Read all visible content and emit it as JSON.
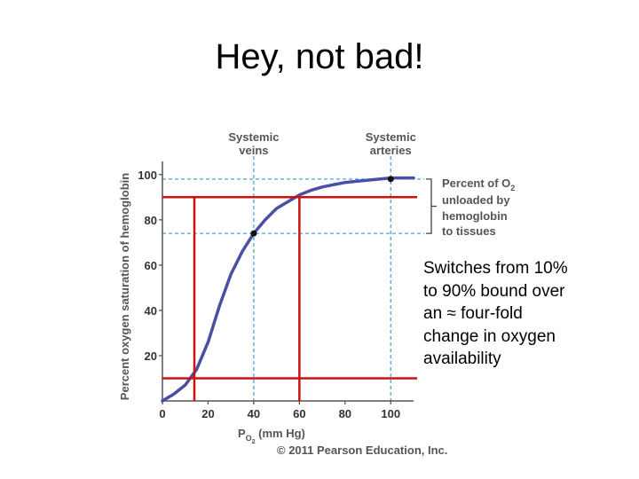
{
  "slide": {
    "title": "Hey, not bad!",
    "note_lines": [
      "Switches from 10%",
      "to 90% bound over",
      "an ≈ four-fold",
      "change in oxygen",
      "availability"
    ]
  },
  "chart_data": {
    "type": "line",
    "ylabel": "Percent oxygen saturation of hemoglobin",
    "xlabel_main": "P",
    "xlabel_sub": "O",
    "xlabel_subsub": "2",
    "xlabel_unit": "(mm Hg)",
    "xlim": [
      0,
      110
    ],
    "ylim": [
      0,
      105
    ],
    "x_ticks": [
      0,
      20,
      40,
      60,
      80,
      100
    ],
    "y_ticks": [
      20,
      40,
      60,
      80,
      100
    ],
    "series": [
      {
        "x": [
          0,
          5,
          10,
          15,
          20,
          25,
          30,
          35,
          40,
          45,
          50,
          55,
          60,
          65,
          70,
          75,
          80,
          85,
          90,
          95,
          100,
          105,
          110
        ],
        "y": [
          0,
          3,
          7,
          14,
          26,
          42,
          56,
          66,
          74,
          80,
          85,
          88,
          91,
          93,
          94.5,
          95.5,
          96.5,
          97,
          97.5,
          98,
          98.5,
          98.5,
          98.5
        ]
      }
    ],
    "points": [
      {
        "x": 40,
        "y": 74
      },
      {
        "x": 100,
        "y": 98
      }
    ],
    "top_labels": [
      {
        "x": 40,
        "lines": [
          "Systemic",
          "veins"
        ]
      },
      {
        "x": 100,
        "lines": [
          "Systemic",
          "arteries"
        ]
      }
    ],
    "blue_dashed_lines": {
      "vertical_x": [
        40,
        100
      ],
      "horizontal_y": [
        74,
        98
      ]
    },
    "red_lines": {
      "vertical_x": [
        14,
        60
      ],
      "horizontal_y": [
        10,
        90
      ]
    },
    "bracket_label": [
      "Percent of O",
      "2",
      "unloaded by",
      "hemoglobin",
      "to tissues"
    ],
    "copyright": "© 2011 Pearson Education, Inc.",
    "colors": {
      "curve": "#4a4fa3",
      "dashed": "#4aa6d6",
      "red": "#cc1111",
      "axis": "#555555"
    }
  }
}
